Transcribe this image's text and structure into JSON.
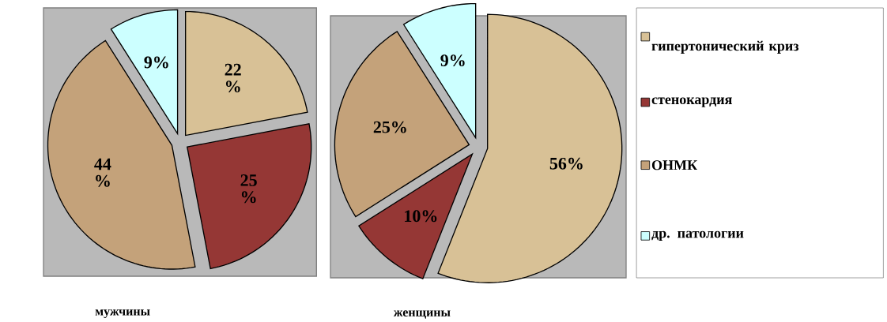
{
  "chart_data": [
    {
      "type": "pie",
      "title": "мужчины",
      "categories": [
        null,
        null,
        null,
        null
      ],
      "values": [
        22,
        25,
        44,
        9
      ],
      "value_labels": [
        "22 %",
        "25 %",
        "44 %",
        "9%"
      ],
      "colors": [
        "#d8c196",
        "#953735",
        "#c4a27a",
        "#ccffff"
      ]
    },
    {
      "type": "pie",
      "title": "женщины",
      "categories": [
        "гипертонический криз",
        "стенокардия",
        "ОНМК",
        "др. патологии"
      ],
      "values": [
        56,
        10,
        25,
        9
      ],
      "value_labels": [
        "56%",
        "10%",
        "25%",
        "9%"
      ],
      "colors": [
        "#d8c196",
        "#953735",
        "#c4a27a",
        "#ccffff"
      ],
      "legend": "right"
    }
  ]
}
